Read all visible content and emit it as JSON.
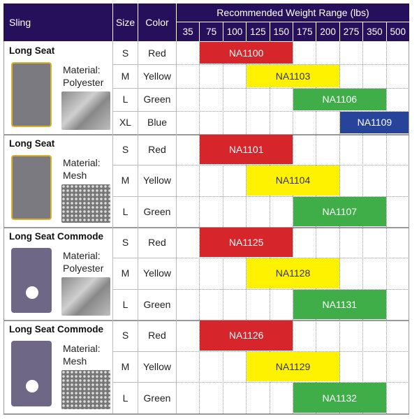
{
  "header": {
    "sling": "Sling",
    "size": "Size",
    "color": "Color",
    "weight_range": "Recommended Weight Range (lbs)",
    "weights": [
      "35",
      "75",
      "100",
      "125",
      "150",
      "175",
      "200",
      "275",
      "350",
      "500"
    ]
  },
  "colors": {
    "header": "#26105c",
    "Red": "#d7262b",
    "Yellow": "#fff200",
    "Green": "#3fae49",
    "Blue": "#27449a"
  },
  "groups": [
    {
      "title": "Long Seat",
      "material_label": "Material:",
      "material": "Polyester",
      "type": "long",
      "fabric": "polyester",
      "rows": [
        {
          "size": "S",
          "color": "Red",
          "code": "NA1100",
          "from": "75",
          "to": "150"
        },
        {
          "size": "M",
          "color": "Yellow",
          "code": "NA1103",
          "from": "125",
          "to": "200"
        },
        {
          "size": "L",
          "color": "Green",
          "code": "NA1106",
          "from": "175",
          "to": "350"
        },
        {
          "size": "XL",
          "color": "Blue",
          "code": "NA1109",
          "from": "275",
          "to": "500"
        }
      ]
    },
    {
      "title": "Long Seat",
      "material_label": "Material:",
      "material": "Mesh",
      "type": "long",
      "fabric": "mesh",
      "rows": [
        {
          "size": "S",
          "color": "Red",
          "code": "NA1101",
          "from": "75",
          "to": "150"
        },
        {
          "size": "M",
          "color": "Yellow",
          "code": "NA1104",
          "from": "125",
          "to": "200"
        },
        {
          "size": "L",
          "color": "Green",
          "code": "NA1107",
          "from": "175",
          "to": "350"
        }
      ]
    },
    {
      "title": "Long Seat Commode",
      "material_label": "Material:",
      "material": "Polyester",
      "type": "commode",
      "fabric": "polyester",
      "rows": [
        {
          "size": "S",
          "color": "Red",
          "code": "NA1125",
          "from": "75",
          "to": "150"
        },
        {
          "size": "M",
          "color": "Yellow",
          "code": "NA1128",
          "from": "125",
          "to": "200"
        },
        {
          "size": "L",
          "color": "Green",
          "code": "NA1131",
          "from": "175",
          "to": "350"
        }
      ]
    },
    {
      "title": "Long Seat Commode",
      "material_label": "Material:",
      "material": "Mesh",
      "type": "commode",
      "fabric": "mesh",
      "rows": [
        {
          "size": "S",
          "color": "Red",
          "code": "NA1126",
          "from": "75",
          "to": "150"
        },
        {
          "size": "M",
          "color": "Yellow",
          "code": "NA1129",
          "from": "125",
          "to": "200"
        },
        {
          "size": "L",
          "color": "Green",
          "code": "NA1132",
          "from": "175",
          "to": "350"
        }
      ]
    }
  ]
}
